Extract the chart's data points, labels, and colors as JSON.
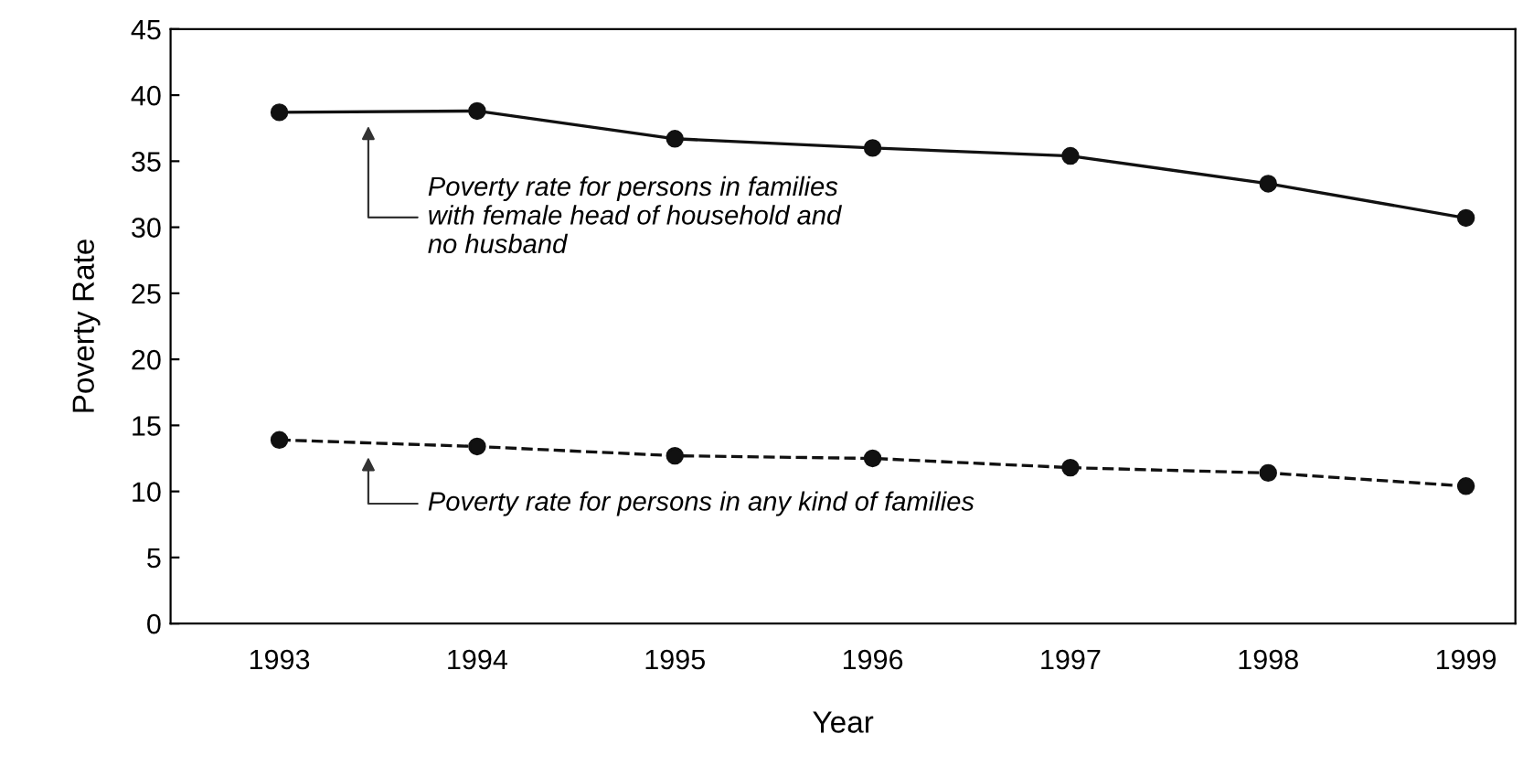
{
  "chart_data": {
    "type": "line",
    "xlabel": "Year",
    "ylabel": "Poverty Rate",
    "categories": [
      "1993",
      "1994",
      "1995",
      "1996",
      "1997",
      "1998",
      "1999"
    ],
    "series": [
      {
        "color": "#111111",
        "line_style": "solid",
        "marker": "circle",
        "values": [
          38.7,
          38.8,
          36.7,
          36.0,
          35.4,
          33.3,
          30.7
        ]
      },
      {
        "color": "#111111",
        "line_style": "dashed",
        "marker": "circle",
        "values": [
          13.9,
          13.4,
          12.7,
          12.5,
          11.8,
          11.4,
          10.4
        ]
      }
    ],
    "annotations": [
      "Poverty rate for persons in families\nwith female head of household and\nno husband",
      "Poverty rate for persons in any kind of families"
    ],
    "ylim": [
      0,
      45
    ],
    "yticks": [
      0,
      5,
      10,
      15,
      20,
      25,
      30,
      35,
      40,
      45
    ],
    "grid": false
  }
}
